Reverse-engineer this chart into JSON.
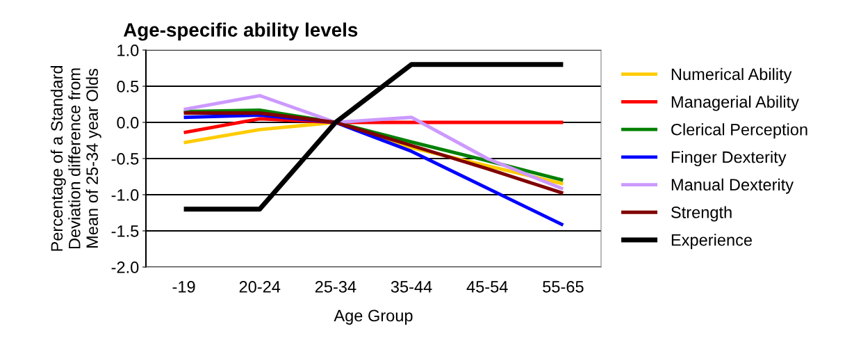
{
  "chart_data": {
    "type": "line",
    "title": "Age-specific ability levels",
    "xlabel": "Age Group",
    "ylabel": "Percentage of a Standard\nDeviation difference from\nMean of 25-34 year Olds",
    "categories": [
      "-19",
      "20-24",
      "25-34",
      "35-44",
      "45-54",
      "55-65"
    ],
    "series": [
      {
        "name": "Numerical Ability",
        "color": "#ffcc00",
        "values": [
          -0.28,
          -0.1,
          0,
          -0.35,
          -0.6,
          -0.85
        ]
      },
      {
        "name": "Managerial Ability",
        "color": "#ff0000",
        "values": [
          -0.14,
          0.05,
          0,
          0,
          0,
          0
        ]
      },
      {
        "name": "Clerical Perception",
        "color": "#008000",
        "values": [
          0.15,
          0.17,
          0,
          -0.27,
          -0.53,
          -0.8
        ]
      },
      {
        "name": "Finger Dexterity",
        "color": "#0000ff",
        "values": [
          0.07,
          0.1,
          0,
          -0.4,
          -0.91,
          -1.42
        ]
      },
      {
        "name": "Manual Dexterity",
        "color": "#cc99ff",
        "values": [
          0.18,
          0.37,
          0,
          0.07,
          -0.5,
          -0.92
        ]
      },
      {
        "name": "Strength",
        "color": "#800000",
        "values": [
          0.13,
          0.13,
          0,
          -0.32,
          -0.64,
          -0.98
        ]
      },
      {
        "name": "Experience",
        "color": "#000000",
        "values": [
          -1.2,
          -1.2,
          0,
          0.8,
          0.8,
          0.8
        ]
      }
    ],
    "ylim": [
      -2.0,
      1.0
    ],
    "yticks": [
      {
        "value": -2.0,
        "label": "-2.0"
      },
      {
        "value": -1.5,
        "label": "-1.5"
      },
      {
        "value": -1.0,
        "label": "-1.0"
      },
      {
        "value": -0.5,
        "label": "-0.5"
      },
      {
        "value": 0.0,
        "label": "0.0"
      },
      {
        "value": 0.5,
        "label": "0.5"
      },
      {
        "value": 1.0,
        "label": "1.0"
      }
    ],
    "grid": "y",
    "legend": "right",
    "marker": "none",
    "line_style": "solid"
  }
}
